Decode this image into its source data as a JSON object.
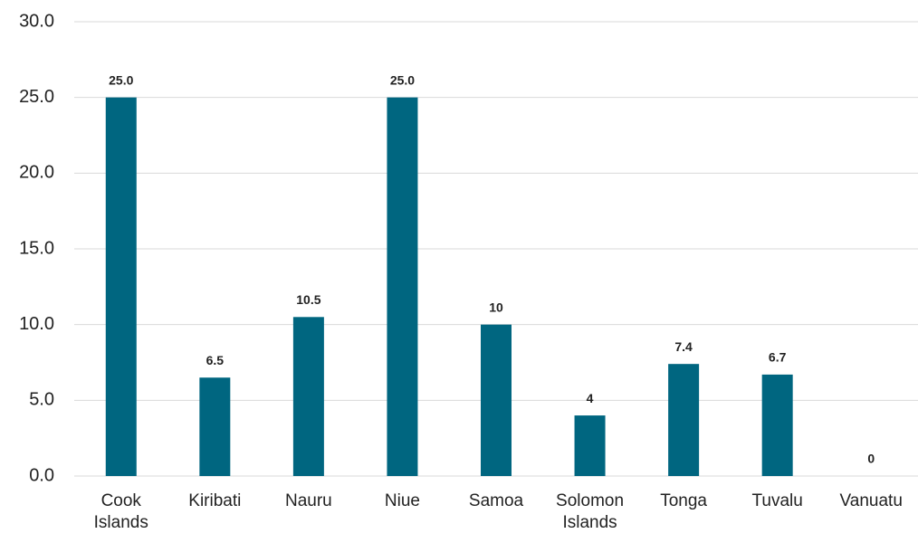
{
  "chart_data": {
    "type": "bar",
    "categories": [
      "Cook Islands",
      "Kiribati",
      "Nauru",
      "Niue",
      "Samoa",
      "Solomon Islands",
      "Tonga",
      "Tuvalu",
      "Vanuatu"
    ],
    "values": [
      25,
      6.5,
      10.5,
      25,
      10,
      4,
      7.4,
      6.7,
      0
    ],
    "value_labels": [
      "25.0",
      "6.5",
      "10.5",
      "25.0",
      "10",
      "4",
      "7.4",
      "6.7",
      "0"
    ],
    "color": "#006680",
    "ylim": [
      0,
      30
    ],
    "yticks": [
      {
        "value": 0,
        "label": "0.0"
      },
      {
        "value": 5,
        "label": "5.0"
      },
      {
        "value": 10,
        "label": "10.0"
      },
      {
        "value": 15,
        "label": "15.0"
      },
      {
        "value": 20,
        "label": "20.0"
      },
      {
        "value": 25,
        "label": "25.0"
      },
      {
        "value": 30,
        "label": "30.0"
      }
    ],
    "grid": true
  }
}
